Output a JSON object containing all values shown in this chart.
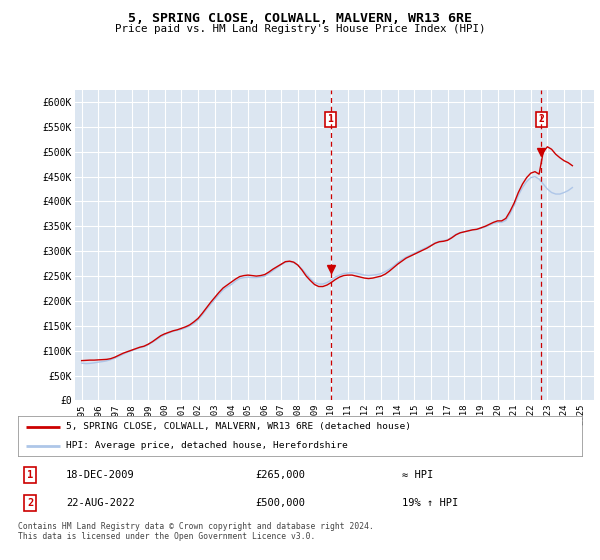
{
  "title": "5, SPRING CLOSE, COLWALL, MALVERN, WR13 6RE",
  "subtitle": "Price paid vs. HM Land Registry's House Price Index (HPI)",
  "ylabel_ticks": [
    "£0",
    "£50K",
    "£100K",
    "£150K",
    "£200K",
    "£250K",
    "£300K",
    "£350K",
    "£400K",
    "£450K",
    "£500K",
    "£550K",
    "£600K"
  ],
  "ytick_values": [
    0,
    50000,
    100000,
    150000,
    200000,
    250000,
    300000,
    350000,
    400000,
    450000,
    500000,
    550000,
    600000
  ],
  "ylim": [
    0,
    625000
  ],
  "xlim_start": 1994.6,
  "xlim_end": 2025.8,
  "xtick_years": [
    1995,
    1996,
    1997,
    1998,
    1999,
    2000,
    2001,
    2002,
    2003,
    2004,
    2005,
    2006,
    2007,
    2008,
    2009,
    2010,
    2011,
    2012,
    2013,
    2014,
    2015,
    2016,
    2017,
    2018,
    2019,
    2020,
    2021,
    2022,
    2023,
    2024,
    2025
  ],
  "bg_color": "#dce6f1",
  "plot_bg_color": "#dce6f1",
  "grid_color": "#ffffff",
  "hpi_line_color": "#aec6e8",
  "price_line_color": "#cc0000",
  "sale1_x": 2009.96,
  "sale1_y": 265000,
  "sale1_label": "1",
  "sale1_date": "18-DEC-2009",
  "sale1_price": "£265,000",
  "sale1_note": "≈ HPI",
  "sale2_x": 2022.64,
  "sale2_y": 500000,
  "sale2_label": "2",
  "sale2_date": "22-AUG-2022",
  "sale2_price": "£500,000",
  "sale2_note": "19% ↑ HPI",
  "vline_color": "#cc0000",
  "marker_color": "#cc0000",
  "legend_line1": "5, SPRING CLOSE, COLWALL, MALVERN, WR13 6RE (detached house)",
  "legend_line2": "HPI: Average price, detached house, Herefordshire",
  "footer": "Contains HM Land Registry data © Crown copyright and database right 2024.\nThis data is licensed under the Open Government Licence v3.0.",
  "hpi_data_x": [
    1995.0,
    1995.25,
    1995.5,
    1995.75,
    1996.0,
    1996.25,
    1996.5,
    1996.75,
    1997.0,
    1997.25,
    1997.5,
    1997.75,
    1998.0,
    1998.25,
    1998.5,
    1998.75,
    1999.0,
    1999.25,
    1999.5,
    1999.75,
    2000.0,
    2000.25,
    2000.5,
    2000.75,
    2001.0,
    2001.25,
    2001.5,
    2001.75,
    2002.0,
    2002.25,
    2002.5,
    2002.75,
    2003.0,
    2003.25,
    2003.5,
    2003.75,
    2004.0,
    2004.25,
    2004.5,
    2004.75,
    2005.0,
    2005.25,
    2005.5,
    2005.75,
    2006.0,
    2006.25,
    2006.5,
    2006.75,
    2007.0,
    2007.25,
    2007.5,
    2007.75,
    2008.0,
    2008.25,
    2008.5,
    2008.75,
    2009.0,
    2009.25,
    2009.5,
    2009.75,
    2010.0,
    2010.25,
    2010.5,
    2010.75,
    2011.0,
    2011.25,
    2011.5,
    2011.75,
    2012.0,
    2012.25,
    2012.5,
    2012.75,
    2013.0,
    2013.25,
    2013.5,
    2013.75,
    2014.0,
    2014.25,
    2014.5,
    2014.75,
    2015.0,
    2015.25,
    2015.5,
    2015.75,
    2016.0,
    2016.25,
    2016.5,
    2016.75,
    2017.0,
    2017.25,
    2017.5,
    2017.75,
    2018.0,
    2018.25,
    2018.5,
    2018.75,
    2019.0,
    2019.25,
    2019.5,
    2019.75,
    2020.0,
    2020.25,
    2020.5,
    2020.75,
    2021.0,
    2021.25,
    2021.5,
    2021.75,
    2022.0,
    2022.25,
    2022.5,
    2022.75,
    2023.0,
    2023.25,
    2023.5,
    2023.75,
    2024.0,
    2024.25,
    2024.5
  ],
  "hpi_data_y": [
    75000,
    74000,
    74500,
    75500,
    77000,
    78000,
    79500,
    82000,
    85000,
    89000,
    93000,
    97000,
    100000,
    103000,
    106000,
    108000,
    112000,
    117000,
    122000,
    128000,
    132000,
    136000,
    139000,
    141000,
    143000,
    146000,
    150000,
    155000,
    162000,
    172000,
    183000,
    193000,
    203000,
    213000,
    222000,
    228000,
    233000,
    240000,
    245000,
    247000,
    248000,
    247000,
    247000,
    248000,
    250000,
    255000,
    261000,
    267000,
    273000,
    278000,
    279000,
    277000,
    272000,
    264000,
    254000,
    245000,
    237000,
    234000,
    234000,
    237000,
    242000,
    248000,
    252000,
    255000,
    256000,
    257000,
    256000,
    254000,
    252000,
    251000,
    252000,
    253000,
    255000,
    259000,
    264000,
    270000,
    277000,
    283000,
    288000,
    292000,
    296000,
    300000,
    304000,
    308000,
    312000,
    317000,
    320000,
    321000,
    323000,
    328000,
    334000,
    337000,
    339000,
    341000,
    343000,
    344000,
    346000,
    349000,
    352000,
    356000,
    358000,
    358000,
    362000,
    375000,
    392000,
    412000,
    428000,
    440000,
    448000,
    450000,
    445000,
    435000,
    425000,
    418000,
    415000,
    415000,
    418000,
    422000,
    428000
  ],
  "price_data_x": [
    1995.0,
    1995.25,
    1995.5,
    1995.75,
    1996.0,
    1996.25,
    1996.5,
    1996.75,
    1997.0,
    1997.25,
    1997.5,
    1997.75,
    1998.0,
    1998.25,
    1998.5,
    1998.75,
    1999.0,
    1999.25,
    1999.5,
    1999.75,
    2000.0,
    2000.25,
    2000.5,
    2000.75,
    2001.0,
    2001.25,
    2001.5,
    2001.75,
    2002.0,
    2002.25,
    2002.5,
    2002.75,
    2003.0,
    2003.25,
    2003.5,
    2003.75,
    2004.0,
    2004.25,
    2004.5,
    2004.75,
    2005.0,
    2005.25,
    2005.5,
    2005.75,
    2006.0,
    2006.25,
    2006.5,
    2006.75,
    2007.0,
    2007.25,
    2007.5,
    2007.75,
    2008.0,
    2008.25,
    2008.5,
    2008.75,
    2009.0,
    2009.25,
    2009.5,
    2009.75,
    2010.0,
    2010.25,
    2010.5,
    2010.75,
    2011.0,
    2011.25,
    2011.5,
    2011.75,
    2012.0,
    2012.25,
    2012.5,
    2012.75,
    2013.0,
    2013.25,
    2013.5,
    2013.75,
    2014.0,
    2014.25,
    2014.5,
    2014.75,
    2015.0,
    2015.25,
    2015.5,
    2015.75,
    2016.0,
    2016.25,
    2016.5,
    2016.75,
    2017.0,
    2017.25,
    2017.5,
    2017.75,
    2018.0,
    2018.25,
    2018.5,
    2018.75,
    2019.0,
    2019.25,
    2019.5,
    2019.75,
    2020.0,
    2020.25,
    2020.5,
    2020.75,
    2021.0,
    2021.25,
    2021.5,
    2021.75,
    2022.0,
    2022.25,
    2022.5,
    2022.75,
    2023.0,
    2023.25,
    2023.5,
    2023.75,
    2024.0,
    2024.25,
    2024.5
  ],
  "price_data_y": [
    80000,
    80500,
    81000,
    81000,
    81500,
    82000,
    82500,
    84000,
    87000,
    91000,
    95000,
    98000,
    101000,
    104000,
    107000,
    109000,
    113000,
    118000,
    124000,
    130000,
    134000,
    137000,
    140000,
    142000,
    145000,
    148000,
    152000,
    158000,
    165000,
    175000,
    186000,
    197000,
    207000,
    217000,
    226000,
    232000,
    238000,
    244000,
    249000,
    251000,
    252000,
    251000,
    250000,
    251000,
    253000,
    258000,
    264000,
    269000,
    274000,
    279000,
    280000,
    278000,
    272000,
    262000,
    250000,
    241000,
    233000,
    229000,
    229000,
    232000,
    237000,
    243000,
    248000,
    251000,
    252000,
    252000,
    250000,
    248000,
    246000,
    245000,
    246000,
    248000,
    250000,
    254000,
    260000,
    267000,
    274000,
    280000,
    286000,
    290000,
    294000,
    298000,
    302000,
    306000,
    311000,
    316000,
    319000,
    320000,
    322000,
    327000,
    333000,
    337000,
    339000,
    341000,
    343000,
    344000,
    347000,
    350000,
    354000,
    358000,
    361000,
    361000,
    366000,
    380000,
    397000,
    418000,
    435000,
    448000,
    457000,
    460000,
    455000,
    500000,
    510000,
    505000,
    495000,
    488000,
    482000,
    478000,
    472000
  ]
}
